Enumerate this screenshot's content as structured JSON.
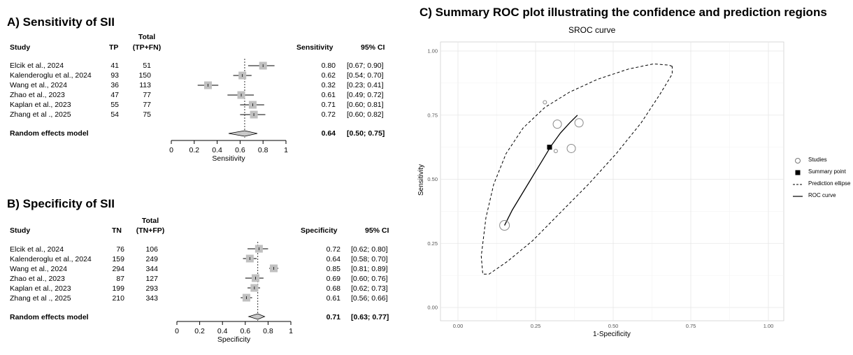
{
  "sensitivity": {
    "title": "A) Sensitivity of SII",
    "headers": {
      "study": "Study",
      "tp": "TP",
      "total_top": "Total",
      "total_bottom": "(TP+FN)",
      "metric": "Sensitivity",
      "ci": "95% CI"
    },
    "studies": [
      {
        "study": "Elcik  et al., 2024",
        "tp": "41",
        "total": "51",
        "est": 0.8,
        "lo": 0.67,
        "hi": 0.9,
        "est_txt": "0.80",
        "ci_txt": "[0.67; 0.90]"
      },
      {
        "study": "Kalenderoglu et al., 2024",
        "tp": "93",
        "total": "150",
        "est": 0.62,
        "lo": 0.54,
        "hi": 0.7,
        "est_txt": "0.62",
        "ci_txt": "[0.54; 0.70]"
      },
      {
        "study": "Wang et al., 2024",
        "tp": "36",
        "total": "113",
        "est": 0.32,
        "lo": 0.23,
        "hi": 0.41,
        "est_txt": "0.32",
        "ci_txt": "[0.23; 0.41]"
      },
      {
        "study": "Zhao et al., 2023",
        "tp": "47",
        "total": "77",
        "est": 0.61,
        "lo": 0.49,
        "hi": 0.72,
        "est_txt": "0.61",
        "ci_txt": "[0.49; 0.72]"
      },
      {
        "study": "Kaplan et al., 2023",
        "tp": "55",
        "total": "77",
        "est": 0.71,
        "lo": 0.6,
        "hi": 0.81,
        "est_txt": "0.71",
        "ci_txt": "[0.60; 0.81]"
      },
      {
        "study": "Zhang et al ., 2025",
        "tp": "54",
        "total": "75",
        "est": 0.72,
        "lo": 0.6,
        "hi": 0.82,
        "est_txt": "0.72",
        "ci_txt": "[0.60; 0.82]"
      }
    ],
    "pooled": {
      "label": "Random effects model",
      "est": 0.64,
      "lo": 0.5,
      "hi": 0.75,
      "est_txt": "0.64",
      "ci_txt": "[0.50; 0.75]"
    },
    "axis_label": "Sensitivity",
    "ticks": [
      "0",
      "0.2",
      "0.4",
      "0.6",
      "0.8",
      "1"
    ]
  },
  "specificity": {
    "title": "B) Specificity of SII",
    "headers": {
      "study": "Study",
      "tn": "TN",
      "total_top": "Total",
      "total_bottom": "(TN+FP)",
      "metric": "Specificity",
      "ci": "95% CI"
    },
    "studies": [
      {
        "study": "Elcik  et al., 2024",
        "tn": "76",
        "total": "106",
        "est": 0.72,
        "lo": 0.62,
        "hi": 0.8,
        "est_txt": "0.72",
        "ci_txt": "[0.62; 0.80]"
      },
      {
        "study": "Kalenderoglu et al., 2024",
        "tn": "159",
        "total": "249",
        "est": 0.64,
        "lo": 0.58,
        "hi": 0.7,
        "est_txt": "0.64",
        "ci_txt": "[0.58; 0.70]"
      },
      {
        "study": "Wang et al., 2024",
        "tn": "294",
        "total": "344",
        "est": 0.85,
        "lo": 0.81,
        "hi": 0.89,
        "est_txt": "0.85",
        "ci_txt": "[0.81; 0.89]"
      },
      {
        "study": "Zhao et al., 2023",
        "tn": "87",
        "total": "127",
        "est": 0.69,
        "lo": 0.6,
        "hi": 0.76,
        "est_txt": "0.69",
        "ci_txt": "[0.60; 0.76]"
      },
      {
        "study": "Kaplan et al., 2023",
        "tn": "199",
        "total": "293",
        "est": 0.68,
        "lo": 0.62,
        "hi": 0.73,
        "est_txt": "0.68",
        "ci_txt": "[0.62; 0.73]"
      },
      {
        "study": "Zhang et al ., 2025",
        "tn": "210",
        "total": "343",
        "est": 0.61,
        "lo": 0.56,
        "hi": 0.66,
        "est_txt": "0.61",
        "ci_txt": "[0.56; 0.66]"
      }
    ],
    "pooled": {
      "label": "Random effects model",
      "est": 0.71,
      "lo": 0.63,
      "hi": 0.77,
      "est_txt": "0.71",
      "ci_txt": "[0.63; 0.77]"
    },
    "axis_label": "Specificity",
    "ticks": [
      "0",
      "0.2",
      "0.4",
      "0.6",
      "0.8",
      "1"
    ]
  },
  "sroc": {
    "panel_title": "C) Summary ROC plot illustrating the confidence and prediction regions",
    "plot_title": "SROC curve",
    "xlabel": "1-Specificity",
    "ylabel": "Sensitivity",
    "xticks": [
      "0.00",
      "0.25",
      "0.50",
      "0.75",
      "1.00"
    ],
    "yticks": [
      "0.00",
      "0.25",
      "0.50",
      "0.75",
      "1.00"
    ],
    "legend": {
      "studies": "Studies",
      "summary": "Summary point",
      "ellipse": "Prediction ellipse",
      "roc": "ROC curve"
    }
  },
  "chart_data": [
    {
      "type": "forest",
      "title": "A) Sensitivity of SII",
      "xlabel": "Sensitivity",
      "xlim": [
        0,
        1
      ],
      "reference_line": 0.64,
      "categories": [
        "Elcik  et al., 2024",
        "Kalenderoglu et al., 2024",
        "Wang et al., 2024",
        "Zhao et al., 2023",
        "Kaplan et al., 2023",
        "Zhang et al ., 2025",
        "Random effects model"
      ],
      "values": [
        0.8,
        0.62,
        0.32,
        0.61,
        0.71,
        0.72,
        0.64
      ],
      "ci_lower": [
        0.67,
        0.54,
        0.23,
        0.49,
        0.6,
        0.6,
        0.5
      ],
      "ci_upper": [
        0.9,
        0.7,
        0.41,
        0.72,
        0.81,
        0.82,
        0.75
      ]
    },
    {
      "type": "forest",
      "title": "B) Specificity of SII",
      "xlabel": "Specificity",
      "xlim": [
        0,
        1
      ],
      "reference_line": 0.71,
      "categories": [
        "Elcik  et al., 2024",
        "Kalenderoglu et al., 2024",
        "Wang et al., 2024",
        "Zhao et al., 2023",
        "Kaplan et al., 2023",
        "Zhang et al ., 2025",
        "Random effects model"
      ],
      "values": [
        0.72,
        0.64,
        0.85,
        0.69,
        0.68,
        0.61,
        0.71
      ],
      "ci_lower": [
        0.62,
        0.58,
        0.81,
        0.6,
        0.62,
        0.56,
        0.63
      ],
      "ci_upper": [
        0.8,
        0.7,
        0.89,
        0.76,
        0.73,
        0.66,
        0.77
      ]
    },
    {
      "type": "scatter",
      "title": "SROC curve",
      "xlabel": "1-Specificity",
      "ylabel": "Sensitivity",
      "xlim": [
        0,
        1
      ],
      "ylim": [
        0,
        1
      ],
      "grid": true,
      "legend_position": "right",
      "series": [
        {
          "name": "Studies",
          "points": [
            {
              "x": 0.15,
              "y": 0.32,
              "size": 3
            },
            {
              "x": 0.28,
              "y": 0.8,
              "size": 1
            },
            {
              "x": 0.32,
              "y": 0.715,
              "size": 2
            },
            {
              "x": 0.39,
              "y": 0.72,
              "size": 2
            },
            {
              "x": 0.365,
              "y": 0.62,
              "size": 2
            },
            {
              "x": 0.315,
              "y": 0.61,
              "size": 1
            }
          ]
        },
        {
          "name": "Summary point",
          "points": [
            {
              "x": 0.295,
              "y": 0.625
            }
          ]
        },
        {
          "name": "Prediction ellipse",
          "points": [
            {
              "x": 0.69,
              "y": 0.94
            },
            {
              "x": 0.68,
              "y": 0.945
            },
            {
              "x": 0.63,
              "y": 0.95
            },
            {
              "x": 0.55,
              "y": 0.93
            },
            {
              "x": 0.45,
              "y": 0.89
            },
            {
              "x": 0.36,
              "y": 0.84
            },
            {
              "x": 0.28,
              "y": 0.78
            },
            {
              "x": 0.21,
              "y": 0.7
            },
            {
              "x": 0.155,
              "y": 0.6
            },
            {
              "x": 0.115,
              "y": 0.48
            },
            {
              "x": 0.09,
              "y": 0.35
            },
            {
              "x": 0.075,
              "y": 0.2
            },
            {
              "x": 0.08,
              "y": 0.13
            },
            {
              "x": 0.1,
              "y": 0.13
            },
            {
              "x": 0.16,
              "y": 0.18
            },
            {
              "x": 0.24,
              "y": 0.26
            },
            {
              "x": 0.33,
              "y": 0.37
            },
            {
              "x": 0.42,
              "y": 0.48
            },
            {
              "x": 0.51,
              "y": 0.6
            },
            {
              "x": 0.59,
              "y": 0.72
            },
            {
              "x": 0.65,
              "y": 0.83
            },
            {
              "x": 0.69,
              "y": 0.91
            },
            {
              "x": 0.69,
              "y": 0.94
            }
          ]
        },
        {
          "name": "ROC curve",
          "points": [
            {
              "x": 0.15,
              "y": 0.32
            },
            {
              "x": 0.175,
              "y": 0.38
            },
            {
              "x": 0.205,
              "y": 0.44
            },
            {
              "x": 0.235,
              "y": 0.5
            },
            {
              "x": 0.27,
              "y": 0.57
            },
            {
              "x": 0.3,
              "y": 0.63
            },
            {
              "x": 0.33,
              "y": 0.68
            },
            {
              "x": 0.36,
              "y": 0.72
            },
            {
              "x": 0.385,
              "y": 0.75
            }
          ]
        }
      ]
    }
  ]
}
